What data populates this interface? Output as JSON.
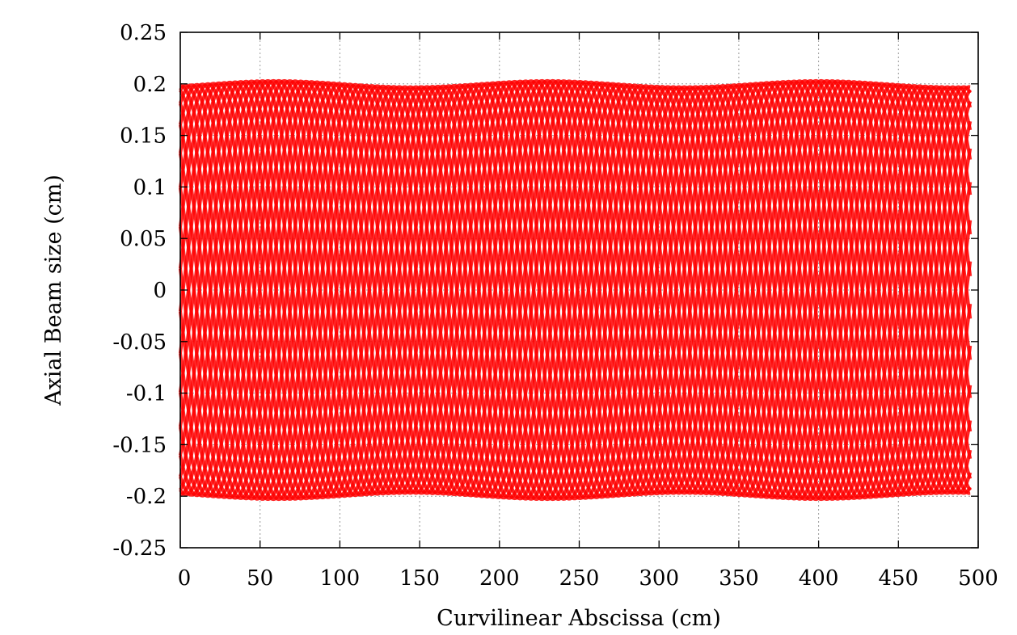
{
  "chart_data": {
    "type": "line",
    "title": "",
    "xlabel": "Curvilinear Abscissa (cm)",
    "ylabel": "Axial Beam size (cm)",
    "xlim": [
      0,
      500
    ],
    "ylim": [
      -0.25,
      0.25
    ],
    "x_ticks": [
      "0",
      "50",
      "100",
      "150",
      "200",
      "250",
      "300",
      "350",
      "400",
      "450",
      "500"
    ],
    "y_ticks": [
      "0.25",
      "0.2",
      "0.15",
      "0.1",
      "0.05",
      "0",
      "-0.05",
      "-0.1",
      "-0.15",
      "-0.2",
      "-0.25"
    ],
    "grid": true,
    "legend": "none",
    "color": "#ff0000",
    "x_range_data": [
      0,
      495
    ],
    "envelope_amplitude": 0.2,
    "envelope_variation": 0.003,
    "betatron_period_cm": 103,
    "envelope_period_cm": 170,
    "series": [
      {
        "amplitude": 0.2,
        "phase_deg": 0
      },
      {
        "amplitude": 0.2,
        "phase_deg": 12
      },
      {
        "amplitude": 0.2,
        "phase_deg": 24
      },
      {
        "amplitude": 0.2,
        "phase_deg": 36
      },
      {
        "amplitude": 0.2,
        "phase_deg": 48
      },
      {
        "amplitude": 0.2,
        "phase_deg": 60
      },
      {
        "amplitude": 0.2,
        "phase_deg": 72
      },
      {
        "amplitude": 0.2,
        "phase_deg": 84
      },
      {
        "amplitude": 0.2,
        "phase_deg": 96
      },
      {
        "amplitude": 0.2,
        "phase_deg": 108
      },
      {
        "amplitude": 0.2,
        "phase_deg": 120
      },
      {
        "amplitude": 0.2,
        "phase_deg": 132
      },
      {
        "amplitude": 0.2,
        "phase_deg": 144
      },
      {
        "amplitude": 0.2,
        "phase_deg": 156
      },
      {
        "amplitude": 0.2,
        "phase_deg": 168
      },
      {
        "amplitude": 0.2,
        "phase_deg": 180
      },
      {
        "amplitude": 0.2,
        "phase_deg": 192
      },
      {
        "amplitude": 0.2,
        "phase_deg": 204
      },
      {
        "amplitude": 0.2,
        "phase_deg": 216
      },
      {
        "amplitude": 0.2,
        "phase_deg": 228
      },
      {
        "amplitude": 0.2,
        "phase_deg": 240
      },
      {
        "amplitude": 0.2,
        "phase_deg": 252
      },
      {
        "amplitude": 0.2,
        "phase_deg": 264
      },
      {
        "amplitude": 0.2,
        "phase_deg": 276
      },
      {
        "amplitude": 0.2,
        "phase_deg": 288
      },
      {
        "amplitude": 0.2,
        "phase_deg": 300
      },
      {
        "amplitude": 0.2,
        "phase_deg": 312
      },
      {
        "amplitude": 0.2,
        "phase_deg": 324
      },
      {
        "amplitude": 0.2,
        "phase_deg": 336
      },
      {
        "amplitude": 0.2,
        "phase_deg": 348
      }
    ]
  }
}
